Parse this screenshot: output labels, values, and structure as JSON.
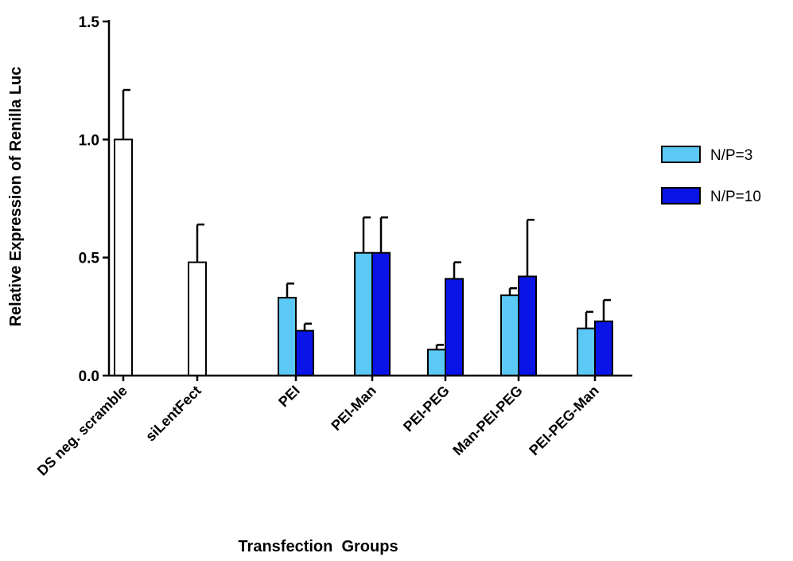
{
  "chart_data": {
    "type": "bar",
    "xlabel": "Transfection  Groups",
    "ylabel": "Relative Expression of Renilla Luc",
    "ylim": [
      0,
      1.5
    ],
    "yticks": [
      "0.0",
      "0.5",
      "1.0",
      "1.5"
    ],
    "categories": [
      "DS neg. scramble",
      "siLentFect",
      "PEI",
      "PEI-Man",
      "PEI-PEG",
      "Man-PEI-PEG",
      "PEI-PEG-Man"
    ],
    "controls": [
      {
        "category": "DS neg. scramble",
        "value": 1.0,
        "error": 0.21,
        "color": "#ffffff"
      },
      {
        "category": "siLentFect",
        "value": 0.48,
        "error": 0.16,
        "color": "#ffffff"
      }
    ],
    "series": [
      {
        "name": "N/P=3",
        "color": "#5bc8f5",
        "values": [
          null,
          null,
          0.33,
          0.52,
          0.11,
          0.34,
          0.2
        ],
        "errors": [
          null,
          null,
          0.06,
          0.15,
          0.02,
          0.03,
          0.07
        ]
      },
      {
        "name": "N/P=10",
        "color": "#0a14e6",
        "values": [
          null,
          null,
          0.19,
          0.52,
          0.41,
          0.42,
          0.23
        ],
        "errors": [
          null,
          null,
          0.03,
          0.15,
          0.07,
          0.24,
          0.09
        ]
      }
    ],
    "legend_position": "right",
    "grid": false
  }
}
